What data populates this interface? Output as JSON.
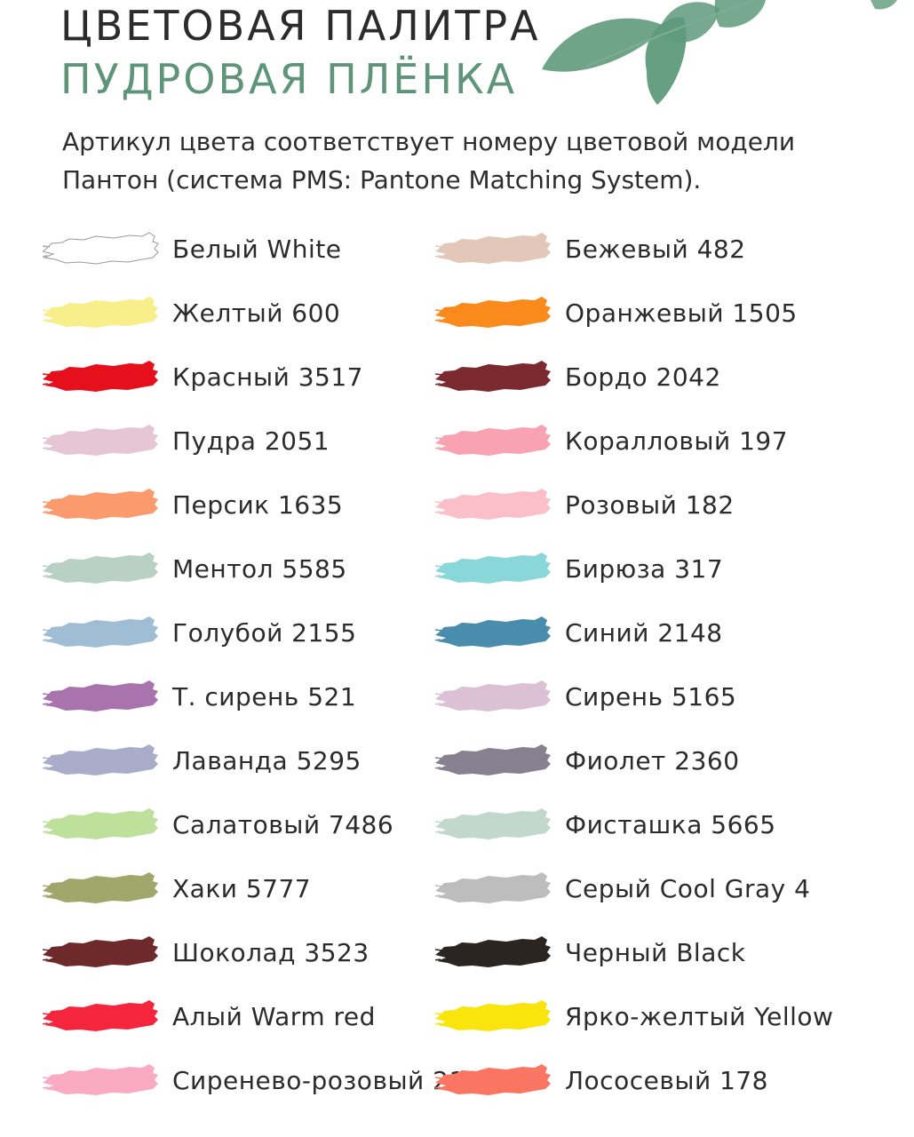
{
  "header": {
    "title": "ЦВЕТОВАЯ ПАЛИТРА",
    "subtitle": "ПУДРОВАЯ ПЛЁНКА",
    "description": "Артикул цвета соответствует номеру цветовой модели Пантон (система PMS: Pantone Matching System)."
  },
  "colors": {
    "title": "#2b2b2b",
    "subtitle": "#5e9479",
    "leaf": "#5f9a7c"
  },
  "palette_left": [
    {
      "label": "Белый White",
      "color": "#ffffff",
      "outline": true
    },
    {
      "label": "Желтый 600",
      "color": "#f8ee8a"
    },
    {
      "label": "Красный 3517",
      "color": "#e5101c"
    },
    {
      "label": "Пудра 2051",
      "color": "#e6c6d2"
    },
    {
      "label": "Персик 1635",
      "color": "#fb9a6c"
    },
    {
      "label": "Ментол 5585",
      "color": "#b8d0c6"
    },
    {
      "label": "Голубой 2155",
      "color": "#9fbdd5"
    },
    {
      "label": "Т. сирень 521",
      "color": "#a974ae"
    },
    {
      "label": "Лаванда 5295",
      "color": "#a9adc9"
    },
    {
      "label": "Салатовый 7486",
      "color": "#bde09b"
    },
    {
      "label": "Хаки 5777",
      "color": "#9fa86a"
    },
    {
      "label": "Шоколад 3523",
      "color": "#6e2a2a"
    },
    {
      "label": "Алый Warm red",
      "color": "#f4253c"
    },
    {
      "label": "Сиренево-розовый 210",
      "color": "#fbaac4"
    }
  ],
  "palette_right": [
    {
      "label": "Бежевый 482",
      "color": "#e3c7b8"
    },
    {
      "label": "Оранжевый 1505",
      "color": "#fb8a1c"
    },
    {
      "label": "Бордо 2042",
      "color": "#7b2a2f"
    },
    {
      "label": "Коралловый 197",
      "color": "#f9a2b2"
    },
    {
      "label": "Розовый 182",
      "color": "#fbbfc9"
    },
    {
      "label": "Бирюза 317",
      "color": "#8ad7da"
    },
    {
      "label": "Синий 2148",
      "color": "#4a8cac"
    },
    {
      "label": "Сирень 5165",
      "color": "#dcc0d4"
    },
    {
      "label": "Фиолет 2360",
      "color": "#86808f"
    },
    {
      "label": "Фисташка 5665",
      "color": "#c2d8cc"
    },
    {
      "label": "Серый Cool Gray 4",
      "color": "#bdbdbd"
    },
    {
      "label": "Черный Black",
      "color": "#2a2520"
    },
    {
      "label": "Ярко-желтый Yellow",
      "color": "#f9e40c"
    },
    {
      "label": "Лососевый 178",
      "color": "#fa7663"
    }
  ]
}
